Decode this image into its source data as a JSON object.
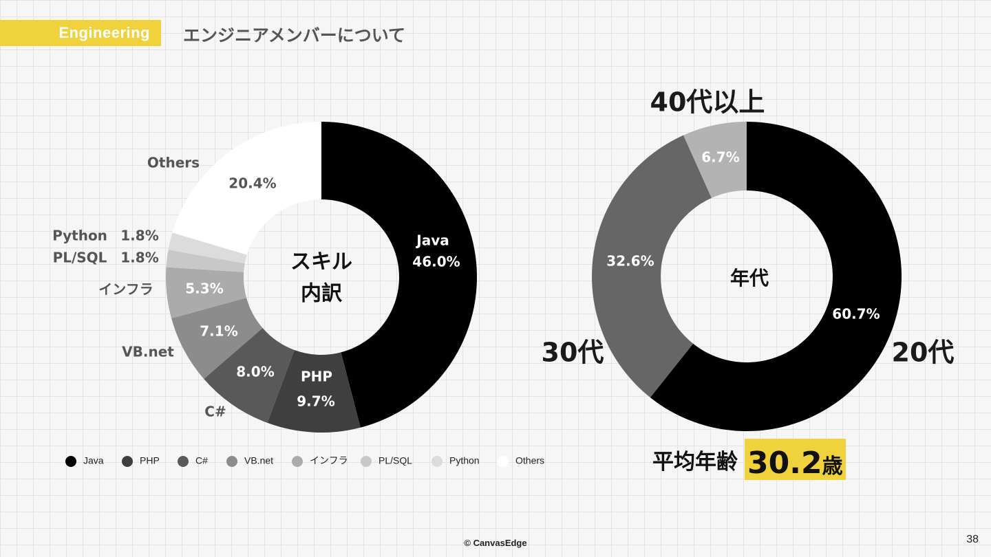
{
  "header": {
    "tag": "Engineering",
    "title": "エンジニアメンバーについて"
  },
  "chart_data": [
    {
      "type": "pie",
      "center_label": [
        "スキル",
        "内訳"
      ],
      "categories": [
        "Java",
        "PHP",
        "C#",
        "VB.net",
        "インフラ",
        "PL/SQL",
        "Python",
        "Others"
      ],
      "values": [
        46.0,
        9.7,
        8.0,
        7.1,
        5.3,
        1.8,
        1.8,
        20.4
      ],
      "value_labels": [
        "46.0%",
        "9.7%",
        "8.0%",
        "7.1%",
        "5.3%",
        "1.8%",
        "1.8%",
        "20.4%"
      ],
      "colors": [
        "#000000",
        "#3f3f3f",
        "#595959",
        "#8c8c8c",
        "#ababab",
        "#c8c8c8",
        "#dcdcdc",
        "#ffffff"
      ],
      "legend_position": "bottom"
    },
    {
      "type": "pie",
      "center_label": [
        "年代"
      ],
      "categories": [
        "20代",
        "30代",
        "40代以上"
      ],
      "values": [
        60.7,
        32.6,
        6.7
      ],
      "value_labels": [
        "60.7%",
        "32.6%",
        "6.7%"
      ],
      "colors": [
        "#000000",
        "#666666",
        "#b3b3b3"
      ]
    }
  ],
  "average_age": {
    "label": "平均年齢",
    "value": "30.2",
    "unit": "歳",
    "highlight_color": "#f0d23c"
  },
  "footer": {
    "copyright": "© CanvasEdge",
    "page_number": "38"
  }
}
